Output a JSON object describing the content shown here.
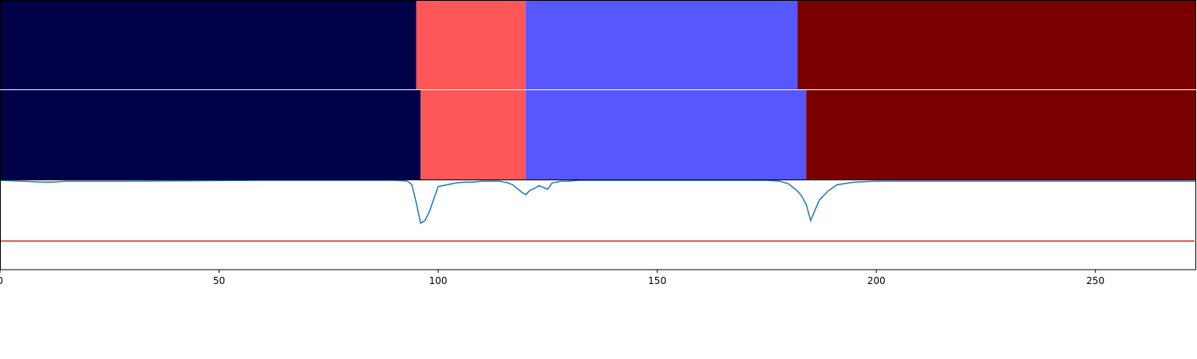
{
  "chart_data": {
    "type": "segmentation-comparison",
    "xlim": [
      0,
      273
    ],
    "x_ticks": [
      0,
      50,
      100,
      150,
      200,
      250
    ],
    "x_tick_labels": [
      "0",
      "50",
      "100",
      "150",
      "200",
      "250"
    ],
    "rows": [
      {
        "segments": [
          {
            "start": 0,
            "end": 95,
            "color": "#000048"
          },
          {
            "start": 95,
            "end": 120,
            "color": "#ff5757"
          },
          {
            "start": 120,
            "end": 182,
            "color": "#5757ff"
          },
          {
            "start": 182,
            "end": 273,
            "color": "#7a0000"
          }
        ]
      },
      {
        "segments": [
          {
            "start": 0,
            "end": 96,
            "color": "#000048"
          },
          {
            "start": 96,
            "end": 120,
            "color": "#ff5757"
          },
          {
            "start": 120,
            "end": 184,
            "color": "#5757ff"
          },
          {
            "start": 184,
            "end": 273,
            "color": "#7a0000"
          }
        ]
      }
    ],
    "signal_panel": {
      "ylim": [
        -1,
        0
      ],
      "threshold": -0.68,
      "threshold_color": "#d62728",
      "line_color": "#1f77b4",
      "series": {
        "x": [
          0,
          5,
          10,
          12,
          15,
          18,
          20,
          30,
          60,
          90,
          93,
          94,
          95,
          96,
          97,
          98,
          100,
          102,
          104,
          106,
          108,
          110,
          112,
          114,
          115,
          116,
          117,
          118,
          119,
          120,
          121,
          122,
          123,
          124,
          125,
          126,
          128,
          130,
          132,
          140,
          160,
          175,
          178,
          180,
          181,
          182,
          183,
          184,
          185,
          187,
          189,
          191,
          195,
          200,
          210,
          220,
          240,
          260,
          270,
          273
        ],
        "y": [
          0.0,
          -0.01,
          -0.02,
          -0.02,
          -0.01,
          -0.01,
          -0.01,
          -0.01,
          0.0,
          0.0,
          -0.01,
          -0.05,
          -0.25,
          -0.48,
          -0.45,
          -0.35,
          -0.07,
          -0.05,
          -0.03,
          -0.02,
          -0.02,
          -0.01,
          -0.01,
          -0.01,
          -0.02,
          -0.03,
          -0.05,
          -0.09,
          -0.13,
          -0.16,
          -0.11,
          -0.09,
          -0.06,
          -0.08,
          -0.1,
          -0.03,
          -0.01,
          -0.01,
          0.0,
          0.0,
          0.0,
          0.0,
          -0.01,
          -0.04,
          -0.08,
          -0.12,
          -0.18,
          -0.27,
          -0.45,
          -0.22,
          -0.12,
          -0.05,
          -0.02,
          -0.01,
          -0.01,
          -0.01,
          -0.01,
          -0.01,
          -0.01,
          -0.01
        ]
      }
    }
  }
}
